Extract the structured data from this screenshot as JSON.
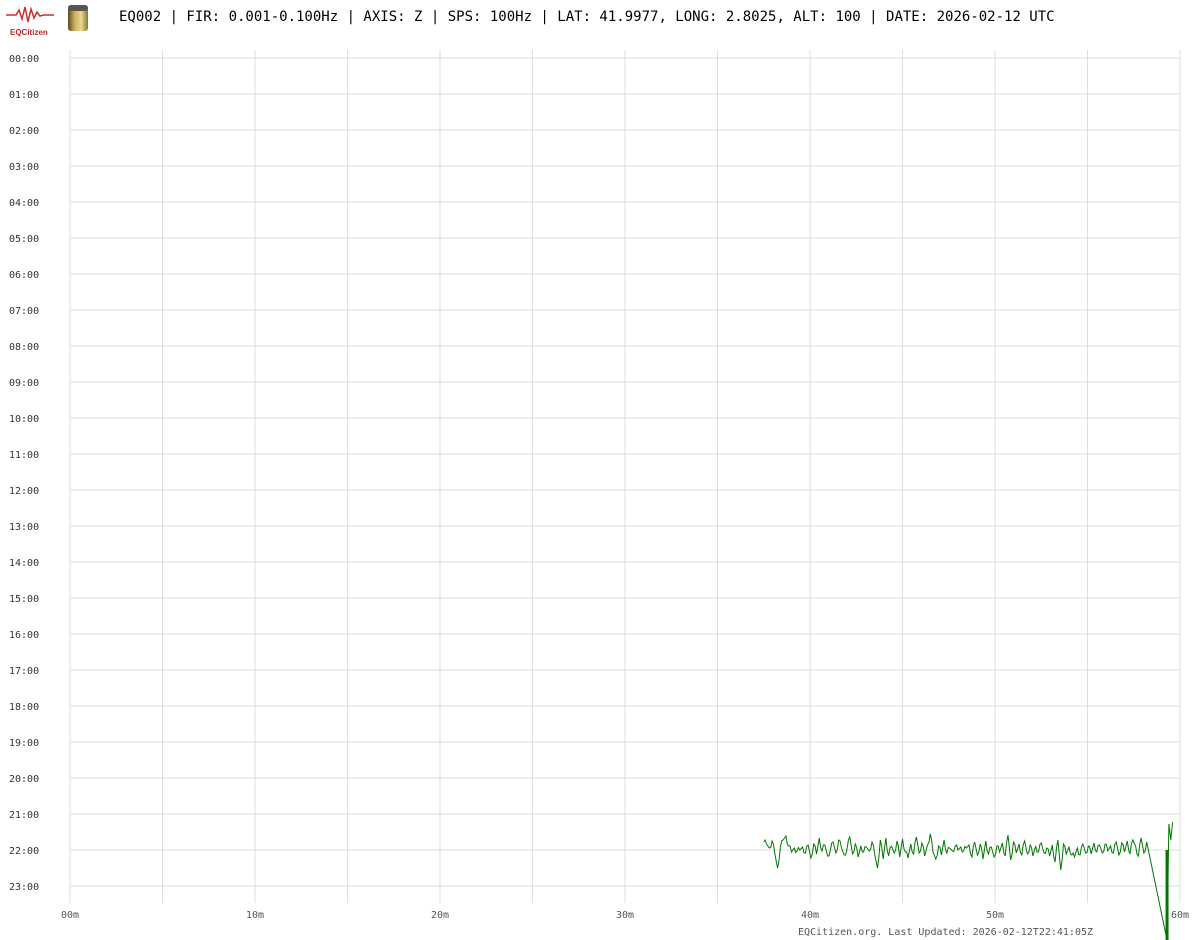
{
  "header": {
    "logo_text": "EQCitizen",
    "title": "EQ002 | FIR: 0.001-0.100Hz | AXIS: Z | SPS: 100Hz | LAT: 41.9977, LONG: 2.8025, ALT: 100 | DATE: 2026-02-12 UTC"
  },
  "footer": "EQCitizen.org. Last Updated: 2026-02-12T22:41:05Z",
  "chart_data": {
    "type": "line",
    "subtype": "helicorder",
    "title": "EQ002 | FIR: 0.001-0.100Hz | AXIS: Z | SPS: 100Hz | LAT: 41.9977, LONG: 2.8025, ALT: 100 | DATE: 2026-02-12 UTC",
    "row_labels": [
      "00:00",
      "01:00",
      "02:00",
      "03:00",
      "04:00",
      "05:00",
      "06:00",
      "07:00",
      "08:00",
      "09:00",
      "10:00",
      "11:00",
      "12:00",
      "13:00",
      "14:00",
      "15:00",
      "16:00",
      "17:00",
      "18:00",
      "19:00",
      "20:00",
      "21:00",
      "22:00",
      "23:00"
    ],
    "x_ticks": [
      {
        "value": 0,
        "label": "00m"
      },
      {
        "value": 10,
        "label": "10m"
      },
      {
        "value": 20,
        "label": "20m"
      },
      {
        "value": 30,
        "label": "30m"
      },
      {
        "value": 40,
        "label": "40m"
      },
      {
        "value": 50,
        "label": "50m"
      },
      {
        "value": 60,
        "label": "60m"
      }
    ],
    "xlim": [
      0,
      60
    ],
    "x_grid_step_minutes": 5,
    "grid": true,
    "line_color": "#007700",
    "grid_color": "#dddddd",
    "series": [
      {
        "row": "22:00",
        "x_start_minutes": 37.5,
        "x_step_minutes": 0.15,
        "values": [
          8,
          6,
          2,
          9,
          -4,
          -18,
          3,
          10,
          14,
          4,
          -2,
          2,
          -1,
          0,
          3,
          -3,
          5,
          -8,
          6,
          -4,
          12,
          -1,
          5,
          -6,
          0,
          8,
          -3,
          10,
          2,
          -5,
          1,
          13,
          -4,
          6,
          -7,
          4,
          -2,
          3,
          -1,
          8,
          -5,
          -18,
          10,
          -9,
          12,
          -6,
          4,
          -3,
          9,
          -7,
          11,
          -2,
          -8,
          6,
          -4,
          13,
          -3,
          7,
          -6,
          5,
          16,
          -2,
          -9,
          4,
          -5,
          10,
          -3,
          2,
          -1,
          4,
          0,
          3,
          -1,
          2,
          5,
          -7,
          8,
          -5,
          6,
          -9,
          9,
          -4,
          3,
          -7,
          4,
          -2,
          7,
          -6,
          15,
          -10,
          8,
          -3,
          6,
          -5,
          9,
          -4,
          5,
          -6,
          4,
          -2,
          7,
          -3,
          2,
          -6,
          5,
          -12,
          10,
          -20,
          6,
          -4,
          3,
          -5,
          -7,
          2,
          -5,
          6,
          -3,
          4,
          -4,
          7,
          -2,
          5,
          -3,
          6,
          -1,
          4,
          -3,
          8,
          -5,
          7,
          -2,
          9,
          -4,
          10,
          4,
          -6,
          12,
          -3,
          8
        ],
        "end_spike": {
          "x_minutes": [
            59.3,
            59.4,
            59.5,
            59.6
          ],
          "values": [
            -90,
            26,
            10,
            28
          ]
        }
      }
    ]
  }
}
